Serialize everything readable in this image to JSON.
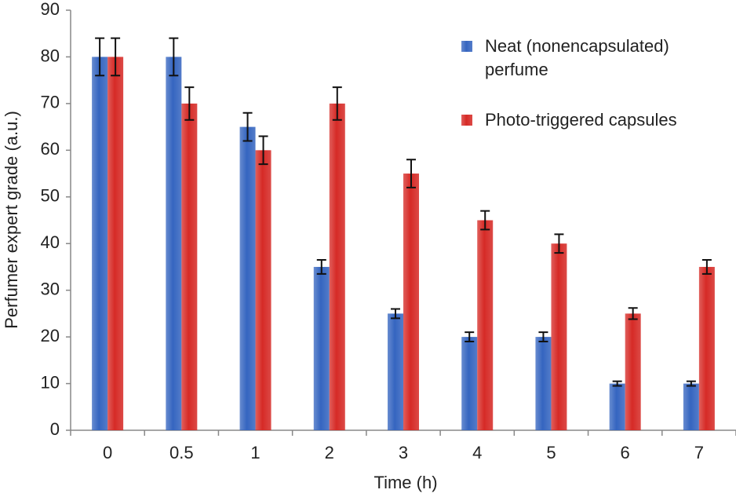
{
  "chart_data": {
    "type": "bar",
    "x_label": "Time (h)",
    "y_label": "Perfumer expert grade (a.u.)",
    "categories": [
      "0",
      "0.5",
      "1",
      "2",
      "3",
      "4",
      "5",
      "6",
      "7"
    ],
    "series": [
      {
        "name": "Neat (nonencapsulated) perfume",
        "color": "#3565c0",
        "values": [
          80,
          80,
          65,
          35,
          25,
          20,
          20,
          10,
          10
        ],
        "errors": [
          4,
          4,
          3,
          1.5,
          1,
          1,
          1,
          0.5,
          0.5
        ]
      },
      {
        "name": "Photo-triggered capsules",
        "color": "#d62a26",
        "values": [
          80,
          70,
          60,
          70,
          55,
          45,
          40,
          25,
          35
        ],
        "errors": [
          4,
          3.5,
          3,
          3.5,
          3,
          2,
          2,
          1.2,
          1.5
        ]
      }
    ],
    "ylim": [
      0,
      90
    ],
    "yticks": [
      0,
      10,
      20,
      30,
      40,
      50,
      60,
      70,
      80,
      90
    ],
    "grid": false,
    "legend": "upper right"
  }
}
